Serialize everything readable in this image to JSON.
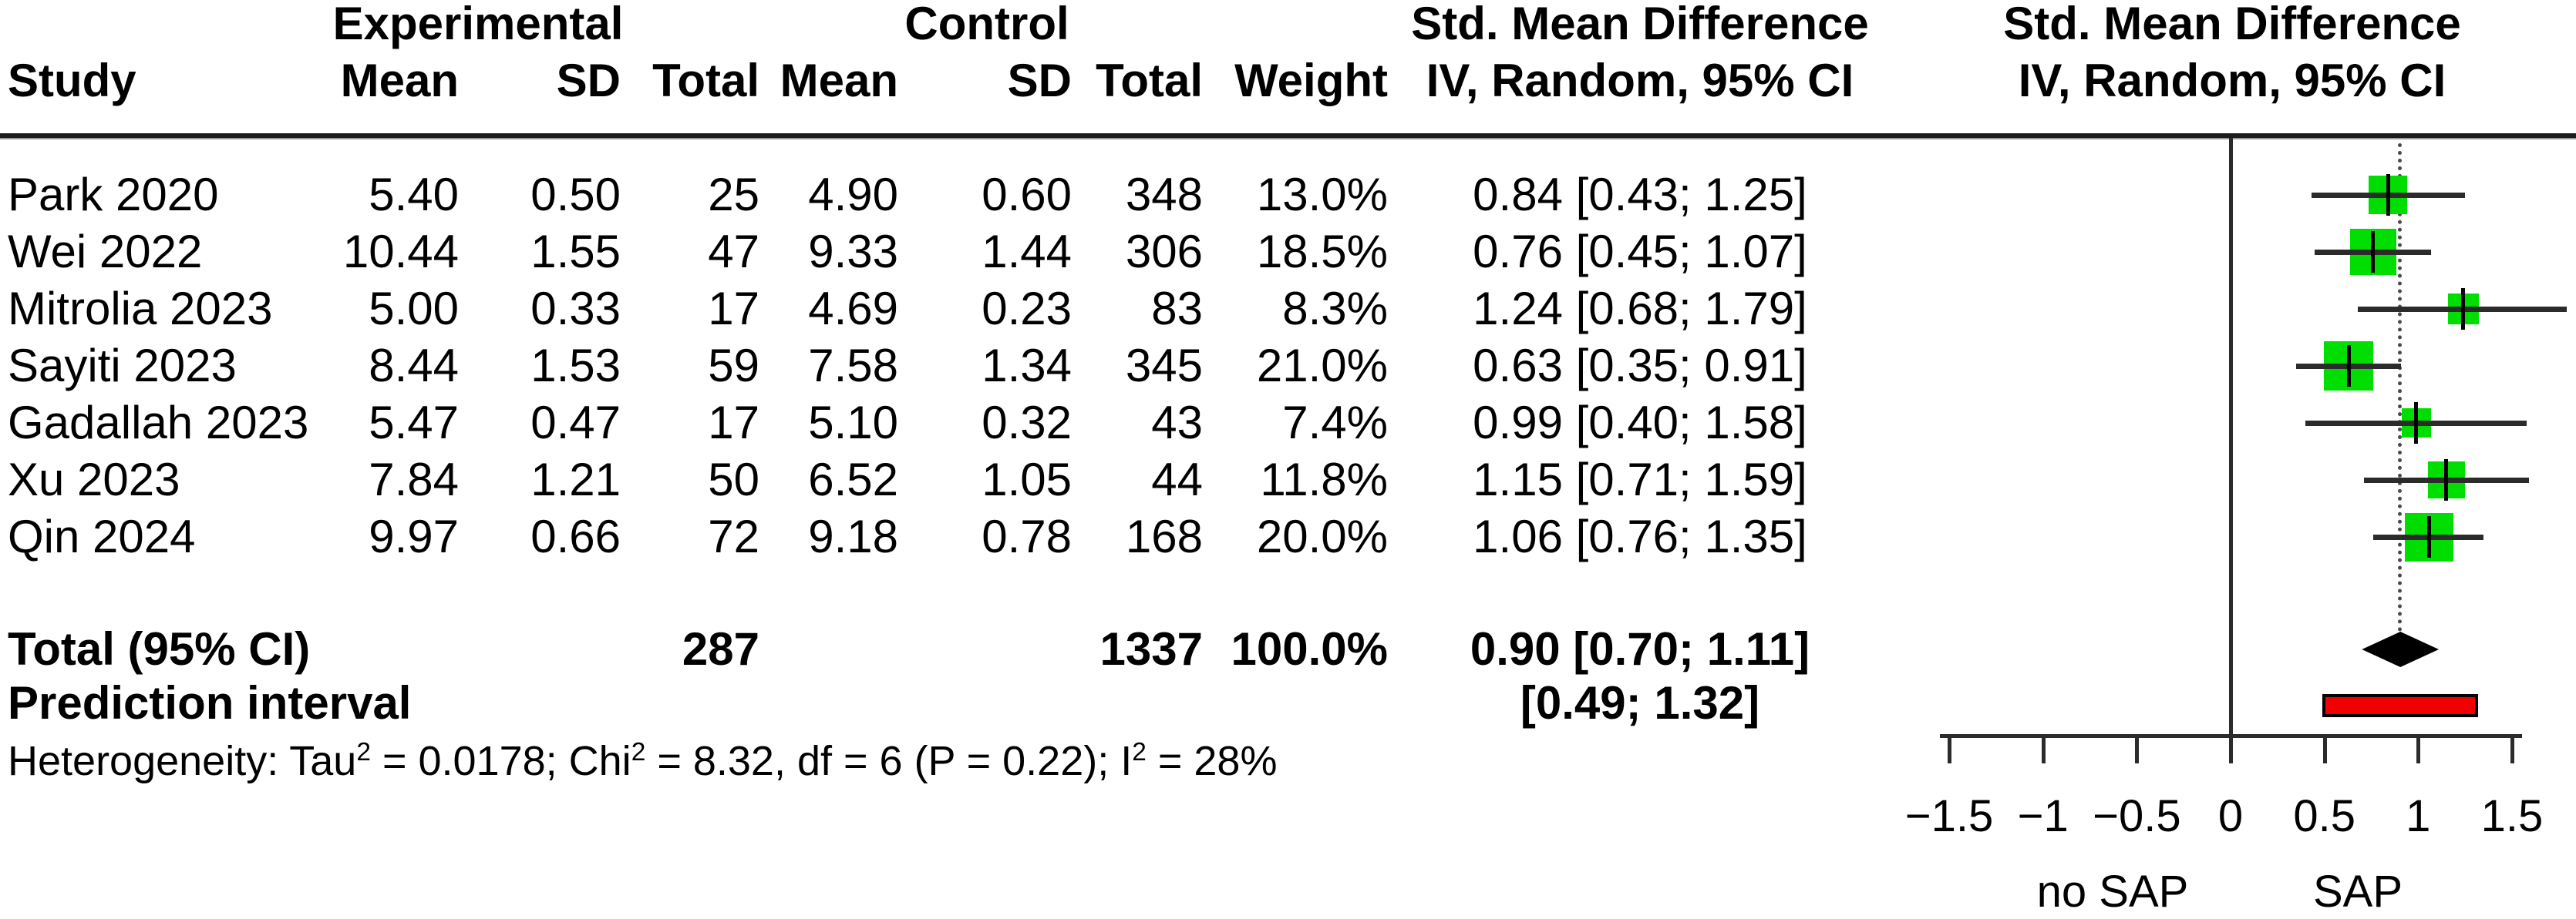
{
  "table": {
    "group_headers": {
      "experimental": "Experimental",
      "control": "Control",
      "smd": "Std. Mean Difference",
      "smd_plot": "Std. Mean Difference"
    },
    "col_headers": {
      "study": "Study",
      "exp_mean": "Mean",
      "exp_sd": "SD",
      "exp_total": "Total",
      "ctl_mean": "Mean",
      "ctl_sd": "SD",
      "ctl_total": "Total",
      "weight": "Weight",
      "iv": "IV, Random, 95% CI",
      "iv_plot": "IV, Random, 95% CI"
    },
    "rows": [
      {
        "study": "Park 2020",
        "exp_mean": "5.40",
        "exp_sd": "0.50",
        "exp_total": "25",
        "ctl_mean": "4.90",
        "ctl_sd": "0.60",
        "ctl_total": "348",
        "weight": "13.0%",
        "smd_label": "0.84 [0.43; 1.25]"
      },
      {
        "study": "Wei 2022",
        "exp_mean": "10.44",
        "exp_sd": "1.55",
        "exp_total": "47",
        "ctl_mean": "9.33",
        "ctl_sd": "1.44",
        "ctl_total": "306",
        "weight": "18.5%",
        "smd_label": "0.76 [0.45; 1.07]"
      },
      {
        "study": "Mitrolia 2023",
        "exp_mean": "5.00",
        "exp_sd": "0.33",
        "exp_total": "17",
        "ctl_mean": "4.69",
        "ctl_sd": "0.23",
        "ctl_total": "83",
        "weight": "8.3%",
        "smd_label": "1.24 [0.68; 1.79]"
      },
      {
        "study": "Sayiti 2023",
        "exp_mean": "8.44",
        "exp_sd": "1.53",
        "exp_total": "59",
        "ctl_mean": "7.58",
        "ctl_sd": "1.34",
        "ctl_total": "345",
        "weight": "21.0%",
        "smd_label": "0.63 [0.35; 0.91]"
      },
      {
        "study": "Gadallah 2023",
        "exp_mean": "5.47",
        "exp_sd": "0.47",
        "exp_total": "17",
        "ctl_mean": "5.10",
        "ctl_sd": "0.32",
        "ctl_total": "43",
        "weight": "7.4%",
        "smd_label": "0.99 [0.40; 1.58]"
      },
      {
        "study": "Xu 2023",
        "exp_mean": "7.84",
        "exp_sd": "1.21",
        "exp_total": "50",
        "ctl_mean": "6.52",
        "ctl_sd": "1.05",
        "ctl_total": "44",
        "weight": "11.8%",
        "smd_label": "1.15 [0.71; 1.59]"
      },
      {
        "study": "Qin 2024",
        "exp_mean": "9.97",
        "exp_sd": "0.66",
        "exp_total": "72",
        "ctl_mean": "9.18",
        "ctl_sd": "0.78",
        "ctl_total": "168",
        "weight": "20.0%",
        "smd_label": "1.06 [0.76; 1.35]"
      }
    ],
    "total_row": {
      "label": "Total (95% CI)",
      "exp_total": "287",
      "ctl_total": "1337",
      "weight": "100.0%",
      "smd_label": "0.90 [0.70; 1.11]"
    },
    "prediction_row": {
      "label": "Prediction interval",
      "smd_label": "[0.49; 1.32]"
    },
    "heterogeneity_parts": [
      "Heterogeneity: Tau",
      "2",
      " = 0.0178; Chi",
      "2",
      " = 8.32, df = 6 (P = 0.22); I",
      "2",
      " = 28%"
    ]
  },
  "chart_data": {
    "type": "forest",
    "title": "Std. Mean Difference, IV, Random, 95% CI",
    "studies": [
      {
        "name": "Park 2020",
        "te": 0.84,
        "lower": 0.43,
        "upper": 1.25,
        "weight_pct": 13.0
      },
      {
        "name": "Wei 2022",
        "te": 0.76,
        "lower": 0.45,
        "upper": 1.07,
        "weight_pct": 18.5
      },
      {
        "name": "Mitrolia 2023",
        "te": 1.24,
        "lower": 0.68,
        "upper": 1.79,
        "weight_pct": 8.3
      },
      {
        "name": "Sayiti 2023",
        "te": 0.63,
        "lower": 0.35,
        "upper": 0.91,
        "weight_pct": 21.0
      },
      {
        "name": "Gadallah 2023",
        "te": 0.99,
        "lower": 0.4,
        "upper": 1.58,
        "weight_pct": 7.4
      },
      {
        "name": "Xu 2023",
        "te": 1.15,
        "lower": 0.71,
        "upper": 1.59,
        "weight_pct": 11.8
      },
      {
        "name": "Qin 2024",
        "te": 1.06,
        "lower": 0.76,
        "upper": 1.35,
        "weight_pct": 20.0
      }
    ],
    "total": {
      "te": 0.9,
      "lower": 0.7,
      "upper": 1.11
    },
    "prediction": {
      "lower": 0.49,
      "upper": 1.32
    },
    "axis": {
      "xlim": [
        -1.5,
        1.5
      ],
      "ticks": [
        -1.5,
        -1,
        -0.5,
        0,
        0.5,
        1,
        1.5
      ],
      "tick_labels": [
        "−1.5",
        "−1",
        "−0.5",
        "0",
        "0.5",
        "1",
        "1.5"
      ],
      "null_line": 0,
      "pooled_line": 0.9,
      "left_label": "no SAP",
      "right_label": "SAP"
    },
    "colors": {
      "square": "#00dd00",
      "prediction_bar": "#f00000",
      "diamond": "#000000",
      "line": "#2b2b2b"
    }
  }
}
